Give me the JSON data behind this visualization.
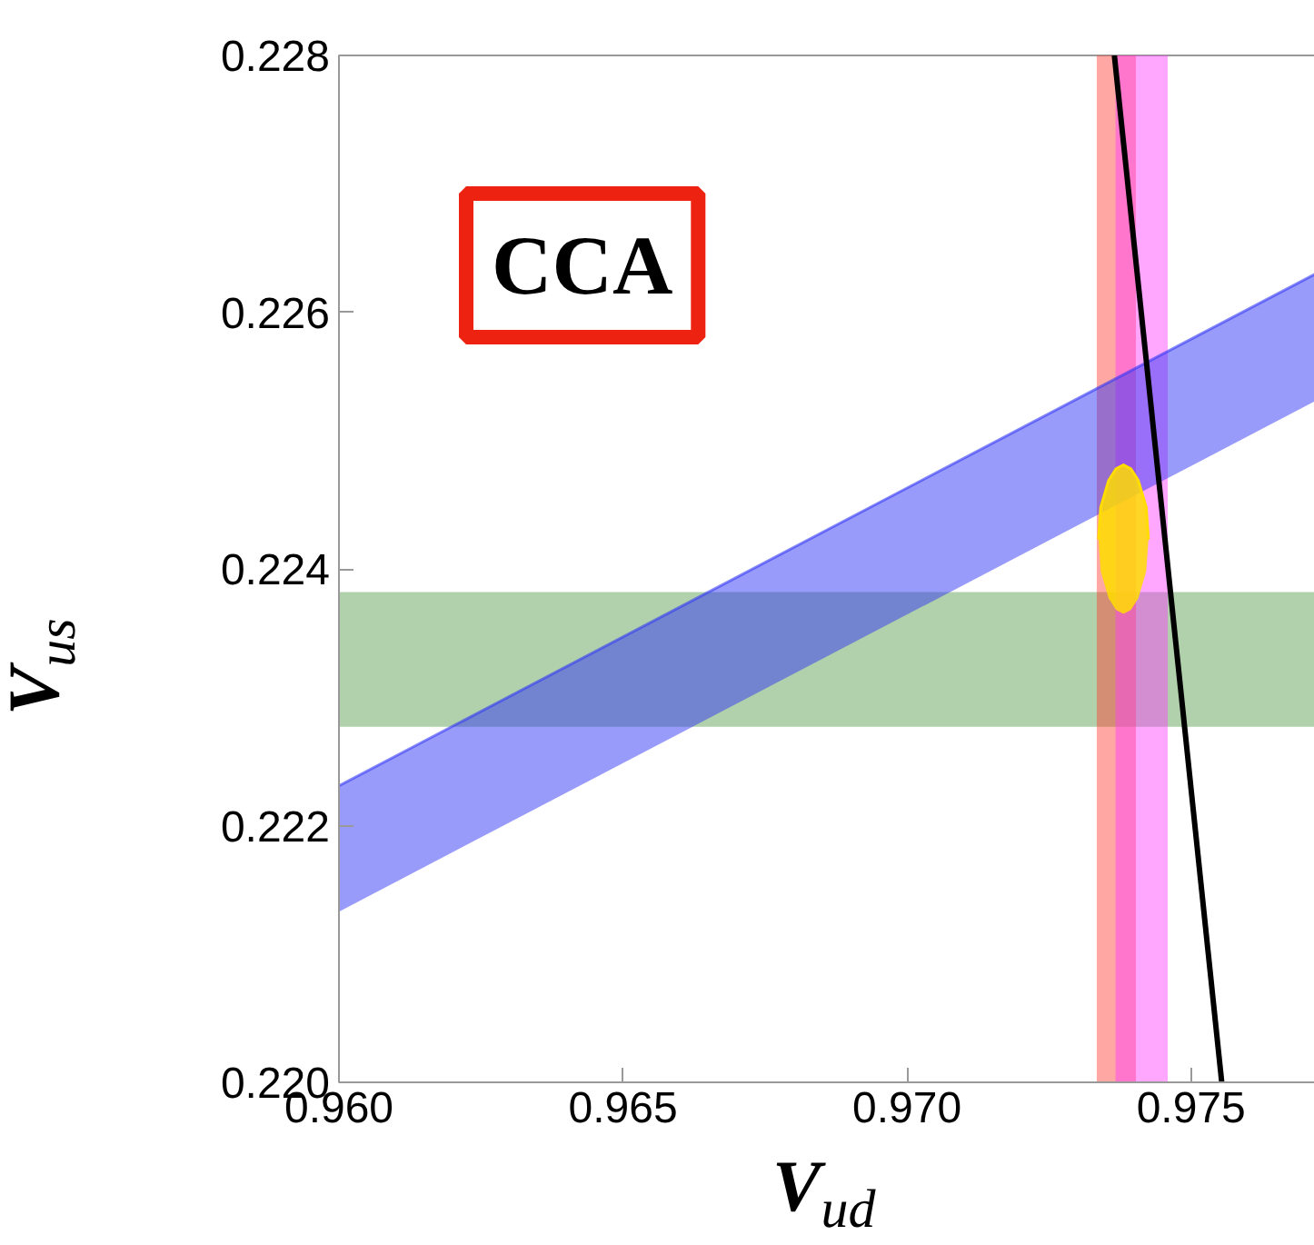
{
  "chart_data": {
    "type": "line",
    "xlabel": "V$_{ud}$",
    "ylabel": "V$_{us}$",
    "annotations": [
      "CCA"
    ],
    "xlim": [
      0.96,
      0.9775
    ],
    "ylim": [
      0.22,
      0.228
    ],
    "xticks": [
      {
        "value": 0.96,
        "label": "0.960"
      },
      {
        "value": 0.965,
        "label": "0.965"
      },
      {
        "value": 0.97,
        "label": "0.970"
      },
      {
        "value": 0.975,
        "label": "0.975"
      }
    ],
    "yticks": [
      {
        "value": 0.22,
        "label": "0.220"
      },
      {
        "value": 0.222,
        "label": "0.222"
      },
      {
        "value": 0.224,
        "label": "0.224"
      },
      {
        "value": 0.226,
        "label": "0.226"
      },
      {
        "value": 0.228,
        "label": "0.228"
      }
    ],
    "grid": false,
    "bands": [
      {
        "axis": "y",
        "from": 0.22277,
        "to": 0.22382,
        "color": "#4f9a45"
      },
      {
        "axis": "x",
        "from": 0.97334,
        "to": 0.97403,
        "color": "#ff3b30"
      },
      {
        "axis": "x",
        "from": 0.97367,
        "to": 0.97459,
        "color": "#ff3bff"
      }
    ],
    "series": [
      {
        "type": "line",
        "x": [
          0.96,
          0.9775
        ],
        "values": [
          0.22231,
          0.22637
        ],
        "lower": [
          0.22133,
          0.22538
        ],
        "upper": [
          0.22231,
          0.22637
        ],
        "color": "#3438f5"
      },
      {
        "type": "line",
        "x": [
          0.97337,
          0.97341,
          0.97355,
          0.97368,
          0.97381,
          0.97394,
          0.97407,
          0.97421,
          0.97425
        ],
        "values": [
          0.22423,
          0.22448,
          0.22469,
          0.22478,
          0.22481,
          0.22478,
          0.22469,
          0.22448,
          0.22423
        ],
        "lower": [
          0.22423,
          0.22398,
          0.22377,
          0.22368,
          0.22365,
          0.22368,
          0.22377,
          0.22398,
          0.22423
        ],
        "upper": [
          0.22423,
          0.22448,
          0.22469,
          0.22478,
          0.22481,
          0.22478,
          0.22469,
          0.22448,
          0.22423
        ],
        "color": "#ffdd00"
      },
      {
        "x": [
          0.97365,
          0.97554
        ],
        "values": [
          0.228,
          0.22
        ],
        "color": "#000000"
      }
    ]
  }
}
